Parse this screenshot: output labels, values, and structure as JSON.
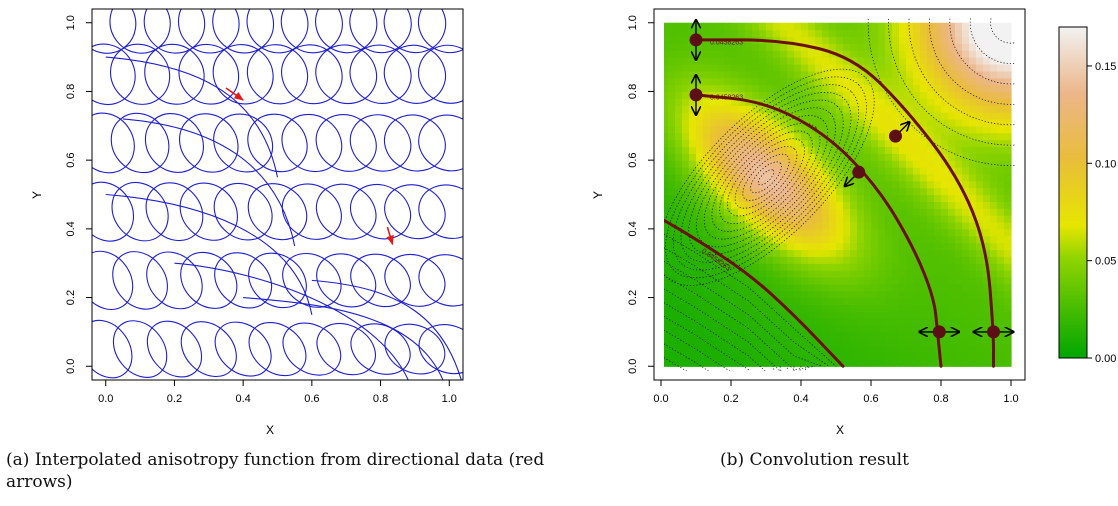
{
  "captions": {
    "a": "(a) Interpolated anisotropy function from directional data (red arrows)",
    "b": "(b) Convolution result"
  },
  "colors": {
    "ellipse": "#1f1fd0",
    "arrow_red": "#e31a1c",
    "contour_dark": "#6b0f0f",
    "point_fill": "#5c0f14"
  },
  "chart_data": [
    {
      "type": "scatter",
      "id": "panel-a",
      "title": "",
      "xlabel": "X",
      "ylabel": "Y",
      "xlim": [
        -0.04,
        1.04
      ],
      "ylim": [
        -0.04,
        1.04
      ],
      "xticks": [
        "0.0",
        "0.2",
        "0.4",
        "0.6",
        "0.8",
        "1.0"
      ],
      "yticks": [
        "0.0",
        "0.2",
        "0.4",
        "0.6",
        "0.8",
        "1.0"
      ],
      "grid": false,
      "ellipses": {
        "centers_x": [
          0.0,
          0.1,
          0.2,
          0.3,
          0.4,
          0.5,
          0.6,
          0.7,
          0.8,
          0.9,
          1.0
        ],
        "centers_y": [
          0.05,
          0.25,
          0.45,
          0.65,
          0.85,
          1.0
        ],
        "rx": 0.075,
        "ry": 0.09,
        "drift": 0.18
      },
      "directional_arrows": [
        {
          "x1": 0.35,
          "y1": 0.81,
          "x2": 0.4,
          "y2": 0.775
        },
        {
          "x1": 0.82,
          "y1": 0.405,
          "x2": 0.835,
          "y2": 0.355
        }
      ]
    },
    {
      "type": "heatmap",
      "id": "panel-b",
      "title": "",
      "xlabel": "X",
      "ylabel": "Y",
      "xlim": [
        -0.02,
        1.04
      ],
      "ylim": [
        -0.04,
        1.04
      ],
      "xticks": [
        "0.0",
        "0.2",
        "0.4",
        "0.6",
        "0.8",
        "1.0"
      ],
      "yticks": [
        "0.0",
        "0.2",
        "0.4",
        "0.6",
        "0.8",
        "1.0"
      ],
      "colorbar": {
        "range": [
          0.0,
          0.17
        ],
        "ticks": [
          "0.00",
          "0.05",
          "0.10",
          "0.15"
        ],
        "tick_values": [
          0.0,
          0.05,
          0.1,
          0.15
        ]
      },
      "peak": {
        "x": 0.3,
        "y": 0.55,
        "value": 0.12
      },
      "corner_value": 0.17,
      "contour_labels": [
        "0.0458263",
        "0.0458263",
        "0.0458263"
      ],
      "paths": [
        {
          "points": [
            [
              0.1,
              0.95
            ],
            [
              0.35,
              0.95
            ],
            [
              0.55,
              0.9
            ],
            [
              0.7,
              0.75
            ],
            [
              0.85,
              0.55
            ],
            [
              0.93,
              0.35
            ],
            [
              0.95,
              0.1
            ],
            [
              0.95,
              0.0
            ]
          ]
        },
        {
          "points": [
            [
              0.1,
              0.79
            ],
            [
              0.3,
              0.77
            ],
            [
              0.48,
              0.67
            ],
            [
              0.62,
              0.52
            ],
            [
              0.72,
              0.35
            ],
            [
              0.78,
              0.2
            ],
            [
              0.79,
              0.1
            ],
            [
              0.8,
              0.0
            ]
          ]
        },
        {
          "points": [
            [
              0.0,
              0.43
            ],
            [
              0.1,
              0.37
            ],
            [
              0.25,
              0.27
            ],
            [
              0.38,
              0.15
            ],
            [
              0.52,
              0.0
            ]
          ]
        }
      ],
      "points": [
        {
          "x": 0.1,
          "y": 0.95,
          "dir": "vertical"
        },
        {
          "x": 0.1,
          "y": 0.79,
          "dir": "vertical"
        },
        {
          "x": 0.67,
          "y": 0.67,
          "dir": "diag-up"
        },
        {
          "x": 0.565,
          "y": 0.565,
          "dir": "diag-down"
        },
        {
          "x": 0.795,
          "y": 0.1,
          "dir": "horizontal"
        },
        {
          "x": 0.95,
          "y": 0.1,
          "dir": "horizontal"
        }
      ]
    }
  ]
}
